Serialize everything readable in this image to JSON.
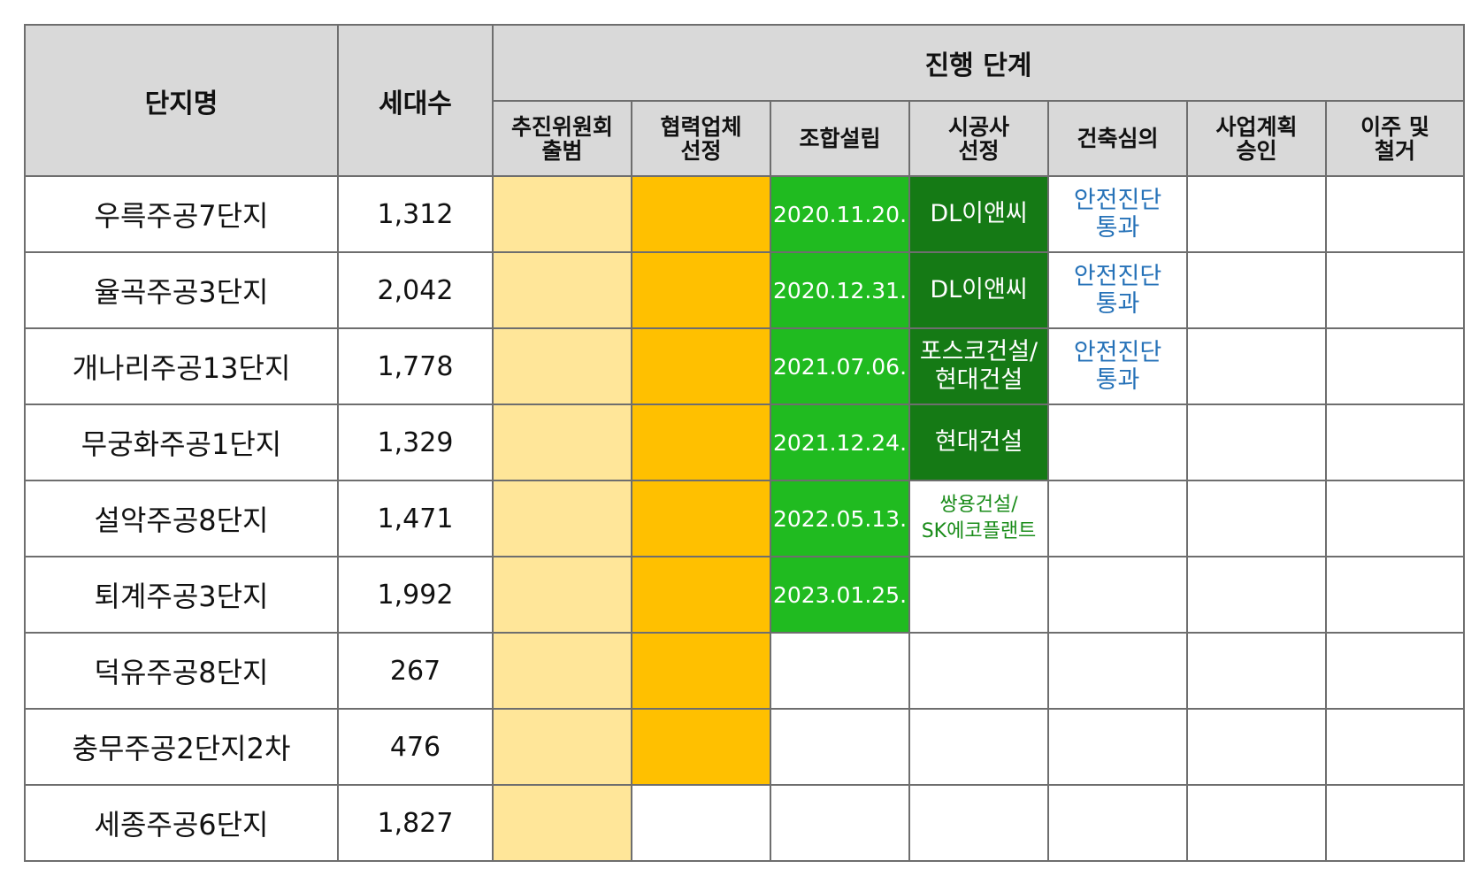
{
  "header": {
    "col_name": "단지명",
    "col_units": "세대수",
    "group_title": "진행 단계",
    "stages": [
      [
        "추진위원회",
        "출범"
      ],
      [
        "협력업체",
        "선정"
      ],
      [
        "조합설립"
      ],
      [
        "시공사",
        "선정"
      ],
      [
        "건축심의"
      ],
      [
        "사업계획",
        "승인"
      ],
      [
        "이주 및",
        "철거"
      ]
    ]
  },
  "colors": {
    "committee": "#ffe699",
    "partner": "#ffc000",
    "union_date": "#20bb20",
    "builder": "#157a15",
    "review_text": "#2672b8",
    "builder_small_text": "#1a8c1a"
  },
  "rows": [
    {
      "name": "우륵주공7단지",
      "units": "1,312",
      "date": "2020.11.20.",
      "builder": [
        "DL이앤씨"
      ],
      "review": [
        "안전진단",
        "통과"
      ]
    },
    {
      "name": "율곡주공3단지",
      "units": "2,042",
      "date": "2020.12.31.",
      "builder": [
        "DL이앤씨"
      ],
      "review": [
        "안전진단",
        "통과"
      ]
    },
    {
      "name": "개나리주공13단지",
      "units": "1,778",
      "date": "2021.07.06.",
      "builder": [
        "포스코건설/",
        "현대건설"
      ],
      "review": [
        "안전진단",
        "통과"
      ]
    },
    {
      "name": "무궁화주공1단지",
      "units": "1,329",
      "date": "2021.12.24.",
      "builder": [
        "현대건설"
      ]
    },
    {
      "name": "설악주공8단지",
      "units": "1,471",
      "date": "2022.05.13.",
      "builder": [
        "쌍용건설/",
        "SK에코플랜트"
      ]
    },
    {
      "name": "퇴계주공3단지",
      "units": "1,992",
      "date": "2023.01.25."
    },
    {
      "name": "덕유주공8단지",
      "units": "267"
    },
    {
      "name": "충무주공2단지2차",
      "units": "476"
    },
    {
      "name": "세종주공6단지",
      "units": "1,827"
    }
  ]
}
